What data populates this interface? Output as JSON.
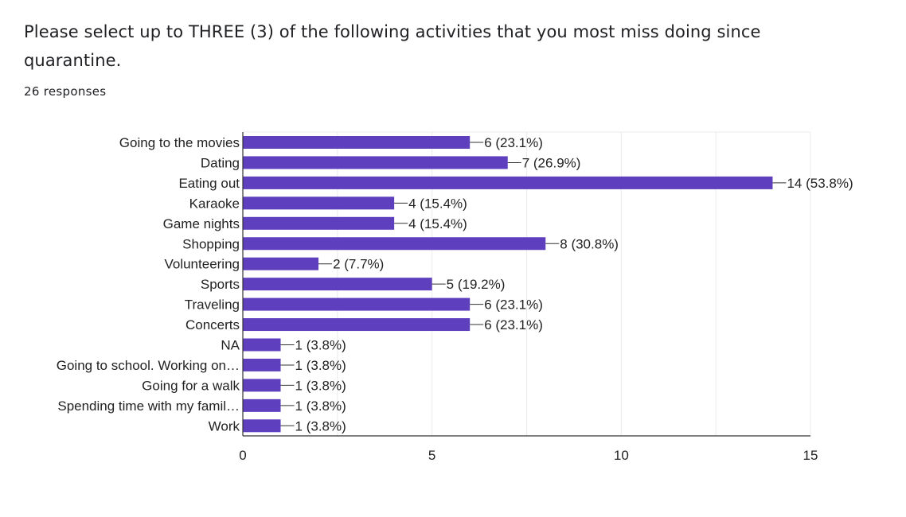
{
  "question": {
    "title": "Please select up to THREE (3) of the following activities that you most miss doing since quarantine.",
    "response_count": "26 responses"
  },
  "colors": {
    "bar": "#5e3fbe",
    "grid": "#ebebeb",
    "axis": "#333333",
    "text": "#222222"
  },
  "chart_data": {
    "type": "bar",
    "orientation": "horizontal",
    "categories": [
      "Going to the movies",
      "Dating",
      "Eating out",
      "Karaoke",
      "Game nights",
      "Shopping",
      "Volunteering",
      "Sports",
      "Traveling",
      "Concerts",
      "NA",
      "Going to school. Working on…",
      "Going for a walk",
      "Spending time with my famil…",
      "Work"
    ],
    "values": [
      6,
      7,
      14,
      4,
      4,
      8,
      2,
      5,
      6,
      6,
      1,
      1,
      1,
      1,
      1
    ],
    "data_labels": [
      "6 (23.1%)",
      "7 (26.9%)",
      "14 (53.8%)",
      "4 (15.4%)",
      "4 (15.4%)",
      "8 (30.8%)",
      "2 (7.7%)",
      "5 (19.2%)",
      "6 (23.1%)",
      "6 (23.1%)",
      "1 (3.8%)",
      "1 (3.8%)",
      "1 (3.8%)",
      "1 (3.8%)",
      "1 (3.8%)"
    ],
    "xlim": [
      0,
      15
    ],
    "x_ticks": [
      0,
      5,
      10,
      15
    ],
    "x_tick_labels": [
      "0",
      "5",
      "10",
      "15"
    ],
    "grid": true,
    "title": "",
    "xlabel": "",
    "ylabel": ""
  }
}
